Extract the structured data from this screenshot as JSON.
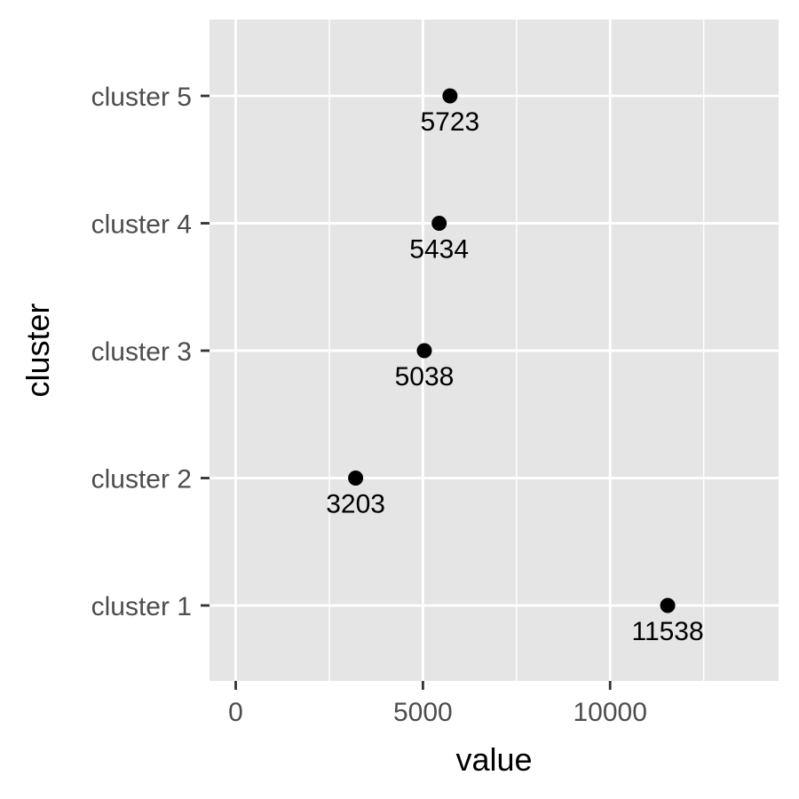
{
  "chart_data": {
    "type": "scatter",
    "orientation": "horizontal",
    "xlabel": "value",
    "ylabel": "cluster",
    "categories": [
      "cluster 1",
      "cluster 2",
      "cluster 3",
      "cluster 4",
      "cluster 5"
    ],
    "values": [
      11538,
      3203,
      5038,
      5434,
      5723
    ],
    "data_labels": [
      "11538",
      "3203",
      "5038",
      "5434",
      "5723"
    ],
    "x_ticks": [
      0,
      5000,
      10000
    ],
    "x_tick_labels": [
      "0",
      "5000",
      "10000"
    ],
    "xlim": [
      -700,
      14500
    ],
    "grid": true,
    "legend": "none",
    "colors": {
      "panel_background": "#e5e5e5",
      "grid_line": "#ffffff",
      "point": "#000000",
      "tick_label": "#4d4d4d",
      "axis_tick": "#333333"
    }
  }
}
